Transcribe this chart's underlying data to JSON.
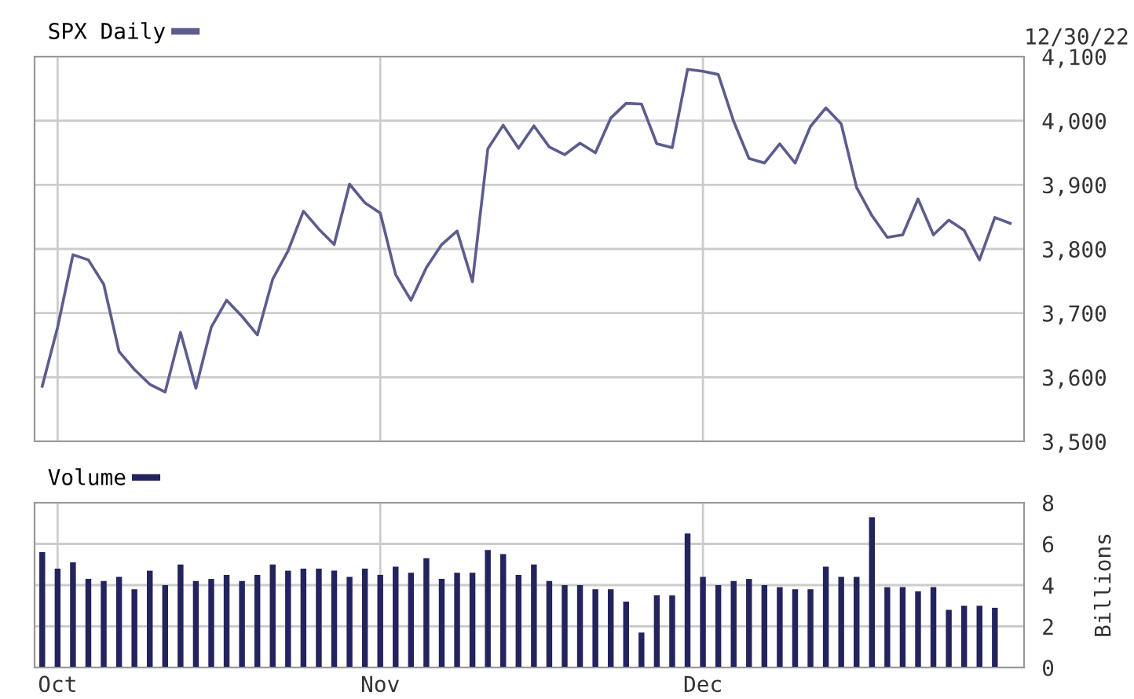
{
  "chart_data": [
    {
      "type": "line",
      "categories": [
        null,
        null,
        null,
        null,
        null,
        null,
        null,
        null,
        null,
        null,
        null,
        null,
        null,
        null,
        null,
        null,
        null,
        null,
        null,
        null,
        null,
        null,
        null,
        null,
        null,
        null,
        null,
        null,
        null,
        null,
        null,
        null,
        null,
        null,
        null,
        null,
        null,
        null,
        null,
        null,
        null,
        null,
        null,
        null,
        null,
        null,
        null,
        null,
        null,
        null,
        null,
        null,
        null,
        null,
        null,
        null,
        null,
        null,
        null,
        null,
        null,
        null,
        null,
        null
      ],
      "series": [
        {
          "name": "SPX Daily",
          "color": "#5c5c8e",
          "values": [
            3586,
            3678,
            3791,
            3783,
            3745,
            3640,
            3612,
            3589,
            3577,
            3670,
            3583,
            3678,
            3720,
            3695,
            3666,
            3753,
            3797,
            3859,
            3831,
            3807,
            3901,
            3872,
            3856,
            3760,
            3720,
            3771,
            3807,
            3828,
            3749,
            3956,
            3993,
            3957,
            3992,
            3959,
            3947,
            3965,
            3950,
            4004,
            4027,
            4026,
            3964,
            3958,
            4080,
            4077,
            4072,
            3999,
            3941,
            3934,
            3964,
            3934,
            3991,
            4020,
            3995,
            3896,
            3852,
            3818,
            3822,
            3878,
            3822,
            3845,
            3829,
            3783,
            3849,
            3840
          ]
        }
      ],
      "ylim": [
        3500,
        4100
      ],
      "yticks": [
        {
          "value": 3500,
          "label": "3,500"
        },
        {
          "value": 3600,
          "label": "3,600"
        },
        {
          "value": 3700,
          "label": "3,700"
        },
        {
          "value": 3800,
          "label": "3,800"
        },
        {
          "value": 3900,
          "label": "3,900"
        },
        {
          "value": 4000,
          "label": "4,000"
        },
        {
          "value": 4100,
          "label": "4,100"
        }
      ],
      "grid": true,
      "legend": "top left",
      "tick_labels": "y",
      "marker": "none",
      "line_style": "solid",
      "annotations": [
        "12/30/22"
      ]
    },
    {
      "type": "bar",
      "categories": [
        null,
        "Oct",
        null,
        null,
        null,
        null,
        null,
        null,
        null,
        null,
        null,
        null,
        null,
        null,
        null,
        null,
        null,
        null,
        null,
        null,
        null,
        null,
        "Nov",
        null,
        null,
        null,
        null,
        null,
        null,
        null,
        null,
        null,
        null,
        null,
        null,
        null,
        null,
        null,
        null,
        null,
        null,
        null,
        null,
        "Dec",
        null,
        null,
        null,
        null,
        null,
        null,
        null,
        null,
        null,
        null,
        null,
        null,
        null,
        null,
        null,
        null,
        null,
        null,
        null,
        null
      ],
      "series": [
        {
          "name": "Volume",
          "color": "#23235e",
          "values": [
            5.6,
            4.8,
            5.1,
            4.3,
            4.2,
            4.4,
            3.8,
            4.7,
            4.0,
            5.0,
            4.2,
            4.3,
            4.5,
            4.2,
            4.5,
            5.0,
            4.7,
            4.8,
            4.8,
            4.7,
            4.4,
            4.8,
            4.5,
            4.9,
            4.6,
            5.3,
            4.3,
            4.6,
            4.6,
            5.7,
            5.5,
            4.5,
            5.0,
            4.2,
            4.0,
            4.0,
            3.8,
            3.8,
            3.2,
            1.7,
            3.5,
            3.5,
            6.5,
            4.4,
            4.0,
            4.2,
            4.3,
            4.0,
            3.9,
            3.8,
            3.8,
            4.9,
            4.4,
            4.4,
            7.3,
            3.9,
            3.9,
            3.7,
            3.9,
            2.8,
            3.0,
            3.0,
            2.9,
            null
          ]
        }
      ],
      "ylim": [
        0,
        8
      ],
      "yticks": [
        0,
        2,
        4,
        6,
        8
      ],
      "ylabel": "Billions",
      "grid": true,
      "legend": "top left"
    }
  ]
}
